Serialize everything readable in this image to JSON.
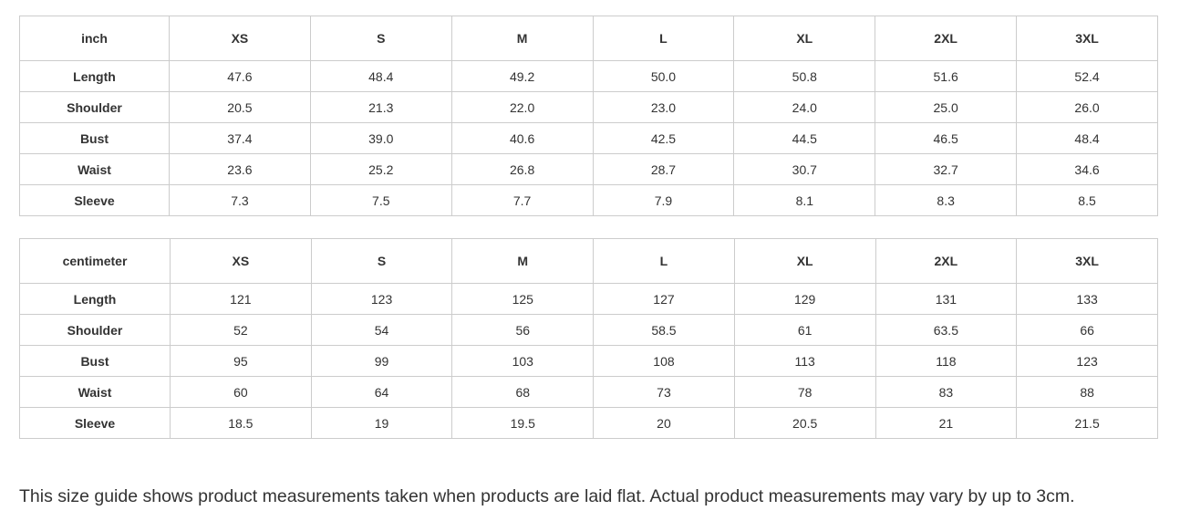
{
  "sizes": [
    "XS",
    "S",
    "M",
    "L",
    "XL",
    "2XL",
    "3XL"
  ],
  "tables": [
    {
      "unit": "inch",
      "rows": [
        {
          "label": "Length",
          "values": [
            "47.6",
            "48.4",
            "49.2",
            "50.0",
            "50.8",
            "51.6",
            "52.4"
          ]
        },
        {
          "label": "Shoulder",
          "values": [
            "20.5",
            "21.3",
            "22.0",
            "23.0",
            "24.0",
            "25.0",
            "26.0"
          ]
        },
        {
          "label": "Bust",
          "values": [
            "37.4",
            "39.0",
            "40.6",
            "42.5",
            "44.5",
            "46.5",
            "48.4"
          ]
        },
        {
          "label": "Waist",
          "values": [
            "23.6",
            "25.2",
            "26.8",
            "28.7",
            "30.7",
            "32.7",
            "34.6"
          ]
        },
        {
          "label": "Sleeve",
          "values": [
            "7.3",
            "7.5",
            "7.7",
            "7.9",
            "8.1",
            "8.3",
            "8.5"
          ]
        }
      ]
    },
    {
      "unit": "centimeter",
      "rows": [
        {
          "label": "Length",
          "values": [
            "121",
            "123",
            "125",
            "127",
            "129",
            "131",
            "133"
          ]
        },
        {
          "label": "Shoulder",
          "values": [
            "52",
            "54",
            "56",
            "58.5",
            "61",
            "63.5",
            "66"
          ]
        },
        {
          "label": "Bust",
          "values": [
            "95",
            "99",
            "103",
            "108",
            "113",
            "118",
            "123"
          ]
        },
        {
          "label": "Waist",
          "values": [
            "60",
            "64",
            "68",
            "73",
            "78",
            "83",
            "88"
          ]
        },
        {
          "label": "Sleeve",
          "values": [
            "18.5",
            "19",
            "19.5",
            "20",
            "20.5",
            "21",
            "21.5"
          ]
        }
      ]
    }
  ],
  "note": "This size guide shows product measurements taken when products are laid flat. Actual product measurements may vary by up to 3cm."
}
